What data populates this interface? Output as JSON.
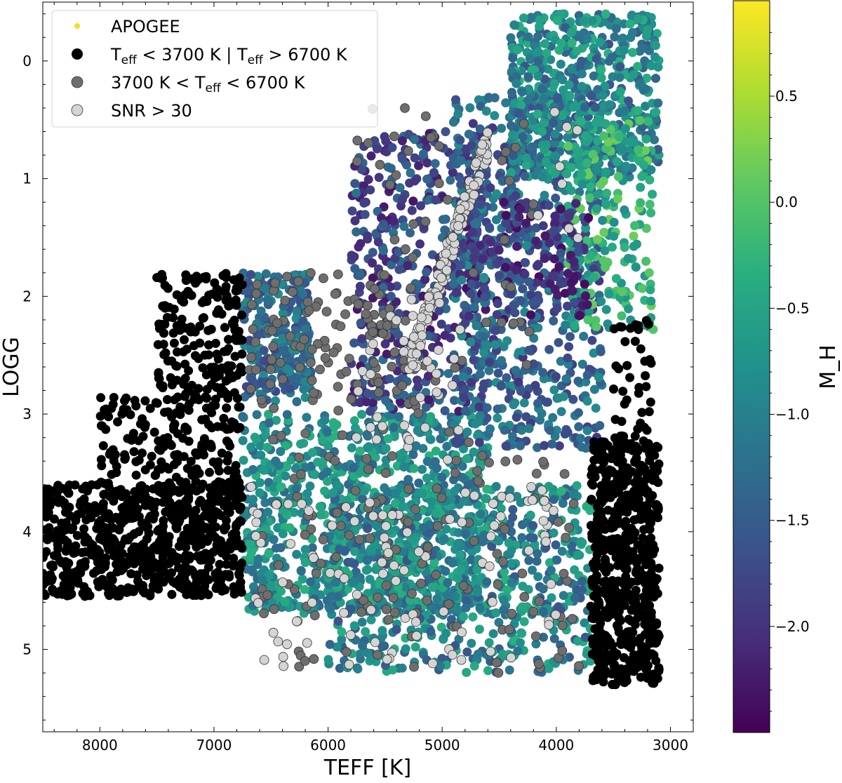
{
  "chart_data": {
    "type": "scatter",
    "title": "",
    "xlabel": "TEFF [K]",
    "ylabel": "LOGG",
    "xlim": [
      8500,
      2800
    ],
    "ylim": [
      5.7,
      -0.5
    ],
    "x_inverted": true,
    "y_inverted": true,
    "grid": false,
    "legend_position": "top-left",
    "x_ticks": [
      {
        "value": 8000,
        "label": "8000"
      },
      {
        "value": 7000,
        "label": "7000"
      },
      {
        "value": 6000,
        "label": "6000"
      },
      {
        "value": 5000,
        "label": "5000"
      },
      {
        "value": 4000,
        "label": "4000"
      },
      {
        "value": 3000,
        "label": "3000"
      }
    ],
    "y_ticks": [
      {
        "value": 0,
        "label": "0"
      },
      {
        "value": 1,
        "label": "1"
      },
      {
        "value": 2,
        "label": "2"
      },
      {
        "value": 3,
        "label": "3"
      },
      {
        "value": 4,
        "label": "4"
      },
      {
        "value": 5,
        "label": "5"
      }
    ],
    "colorbar": {
      "label": "M_H",
      "colormap": "viridis",
      "range": [
        -2.5,
        0.95
      ],
      "ticks": [
        {
          "value": 0.5,
          "label": "0.5"
        },
        {
          "value": 0.0,
          "label": "0.0"
        },
        {
          "value": -0.5,
          "label": "−0.5"
        },
        {
          "value": -1.0,
          "label": "−1.0"
        },
        {
          "value": -1.5,
          "label": "−1.5"
        },
        {
          "value": -2.0,
          "label": "−2.0"
        }
      ]
    },
    "legend": [
      {
        "label": "APOGEE",
        "color": "#f0e020",
        "marker": "small-dot"
      },
      {
        "label_parts": [
          {
            "t": "T",
            "sub": false
          },
          {
            "t": "eff",
            "sub": true
          },
          {
            "t": " < 3700 K | T",
            "sub": false
          },
          {
            "t": "eff",
            "sub": true
          },
          {
            "t": " > 6700 K",
            "sub": false
          }
        ],
        "color": "#000000",
        "marker": "dot"
      },
      {
        "label_parts": [
          {
            "t": "3700 K < T",
            "sub": false
          },
          {
            "t": "eff",
            "sub": true
          },
          {
            "t": " < 6700 K",
            "sub": false
          }
        ],
        "color": "#6e6e6e",
        "marker": "dot"
      },
      {
        "label": "SNR > 30",
        "color": "#d4d4d4",
        "marker": "dot"
      }
    ],
    "series": [
      {
        "name": "APOGEE",
        "color_by": "M_H",
        "regions": [
          {
            "teff": [
              6750,
              6150
            ],
            "logg": [
              1.8,
              2.9
            ],
            "mh": [
              -1.8,
              -0.8
            ],
            "n": 260
          },
          {
            "teff": [
              6750,
              4600
            ],
            "logg": [
              3.0,
              4.7
            ],
            "mh": [
              -1.4,
              -0.3
            ],
            "n": 900
          },
          {
            "teff": [
              6000,
              3700
            ],
            "logg": [
              3.6,
              5.2
            ],
            "mh": [
              -1.6,
              -0.3
            ],
            "n": 650
          },
          {
            "teff": [
              5800,
              4600
            ],
            "logg": [
              0.6,
              3.0
            ],
            "mh": [
              -2.3,
              -1.2
            ],
            "n": 450
          },
          {
            "teff": [
              4900,
              3600
            ],
            "logg": [
              0.3,
              3.3
            ],
            "mh": [
              -2.0,
              -0.8
            ],
            "n": 650
          },
          {
            "teff": [
              4400,
              3100
            ],
            "logg": [
              -0.4,
              1.0
            ],
            "mh": [
              -1.6,
              -0.3
            ],
            "n": 600
          },
          {
            "teff": [
              3900,
              3150
            ],
            "logg": [
              0.5,
              2.3
            ],
            "mh": [
              -0.9,
              0.2
            ],
            "n": 200
          },
          {
            "teff": [
              4800,
              3700
            ],
            "logg": [
              1.2,
              2.2
            ],
            "mh": [
              -2.4,
              -1.5
            ],
            "n": 150
          }
        ]
      },
      {
        "name": "Teff < 3700 K | Teff > 6700 K",
        "color": "#000000",
        "regions": [
          {
            "teff": [
              8500,
              6750
            ],
            "logg": [
              3.6,
              4.55
            ],
            "n": 700
          },
          {
            "teff": [
              7500,
              6750
            ],
            "logg": [
              1.8,
              3.6
            ],
            "n": 300
          },
          {
            "teff": [
              8000,
              7500
            ],
            "logg": [
              2.8,
              3.6
            ],
            "n": 60
          },
          {
            "teff": [
              3700,
              3100
            ],
            "logg": [
              3.2,
              5.3
            ],
            "n": 650
          },
          {
            "teff": [
              3500,
              3150
            ],
            "logg": [
              2.2,
              3.2
            ],
            "n": 40
          }
        ]
      },
      {
        "name": "3700 K < Teff < 6700 K",
        "color": "#6e6e6e",
        "regions": [
          {
            "teff": [
              6700,
              5200
            ],
            "logg": [
              1.8,
              3.0
            ],
            "n": 110
          },
          {
            "teff": [
              6600,
              3800
            ],
            "logg": [
              3.1,
              5.2
            ],
            "n": 140
          },
          {
            "teff": [
              5800,
              4200
            ],
            "logg": [
              0.4,
              2.8
            ],
            "n": 50
          }
        ]
      },
      {
        "name": "SNR > 30",
        "color": "#d4d4d4",
        "regions": [
          {
            "teff": [
              5300,
              4600
            ],
            "logg": [
              0.7,
              2.6
            ],
            "n": 140,
            "band": true
          },
          {
            "teff": [
              6700,
              4000
            ],
            "logg": [
              3.6,
              5.2
            ],
            "n": 100
          },
          {
            "teff": [
              5800,
              4800
            ],
            "logg": [
              2.0,
              3.4
            ],
            "n": 40
          },
          {
            "teff": [
              4300,
              3800
            ],
            "logg": [
              0.3,
              1.9
            ],
            "n": 8
          }
        ]
      }
    ]
  }
}
